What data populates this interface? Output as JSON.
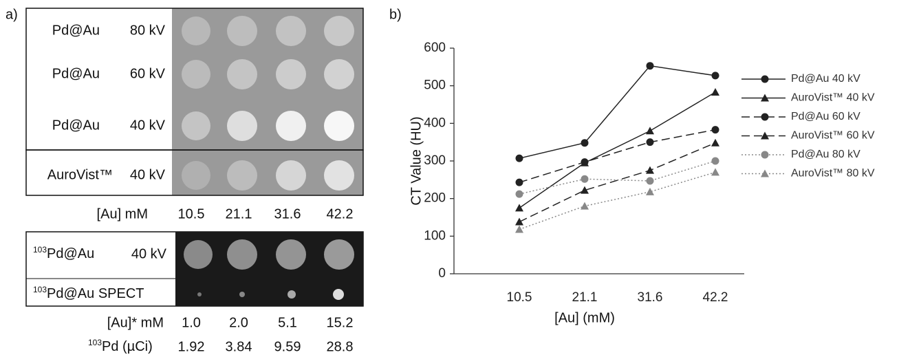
{
  "panel_a": {
    "label": "a)",
    "rows": [
      {
        "name": "Pd@Au",
        "kv": "80 kV"
      },
      {
        "name": "Pd@Au",
        "kv": "60 kV"
      },
      {
        "name": "Pd@Au",
        "kv": "40 kV"
      },
      {
        "name": "AuroVist™",
        "kv": "40 kV"
      }
    ],
    "au_label": "[Au] mM",
    "au_values": [
      "10.5",
      "21.1",
      "31.6",
      "42.2"
    ],
    "radio_rows": [
      {
        "sup": "103",
        "name": "Pd@Au",
        "kv": "40 kV"
      },
      {
        "sup": "103",
        "name": "Pd@Au SPECT"
      }
    ],
    "au_star_label": "[Au]* mM",
    "au_star_values": [
      "1.0",
      "2.0",
      "5.1",
      "15.2"
    ],
    "pd_sup": "103",
    "pd_label": "Pd (µCi)",
    "pd_values": [
      "1.92",
      "3.84",
      "9.59",
      "28.8"
    ]
  },
  "chart_data": {
    "type": "line",
    "label": "b)",
    "y_label": "CT Value (HU)",
    "x_label": "[Au] (mM)",
    "categories": [
      "10.5",
      "21.1",
      "31.6",
      "42.2"
    ],
    "ylim": [
      0,
      600
    ],
    "yticks": [
      0,
      100,
      200,
      300,
      400,
      500,
      600
    ],
    "series": [
      {
        "name": "Pd@Au 40 kV",
        "color": "#222222",
        "dash": "solid",
        "marker": "circle",
        "values": [
          307,
          348,
          553,
          527
        ]
      },
      {
        "name": "AuroVist™ 40 kV",
        "color": "#222222",
        "dash": "solid",
        "marker": "triangle",
        "values": [
          175,
          295,
          380,
          483
        ]
      },
      {
        "name": "Pd@Au 60 kV",
        "color": "#222222",
        "dash": "dashed",
        "marker": "circle",
        "values": [
          243,
          297,
          350,
          383
        ]
      },
      {
        "name": "AuroVist™ 60 kV",
        "color": "#222222",
        "dash": "dashed",
        "marker": "triangle",
        "values": [
          138,
          222,
          275,
          348
        ]
      },
      {
        "name": "Pd@Au 80 kV",
        "color": "#888888",
        "dash": "dotted",
        "marker": "circle",
        "values": [
          212,
          252,
          247,
          300
        ]
      },
      {
        "name": "AuroVist™ 80 kV",
        "color": "#888888",
        "dash": "dotted",
        "marker": "triangle",
        "values": [
          118,
          180,
          218,
          270
        ]
      }
    ]
  }
}
